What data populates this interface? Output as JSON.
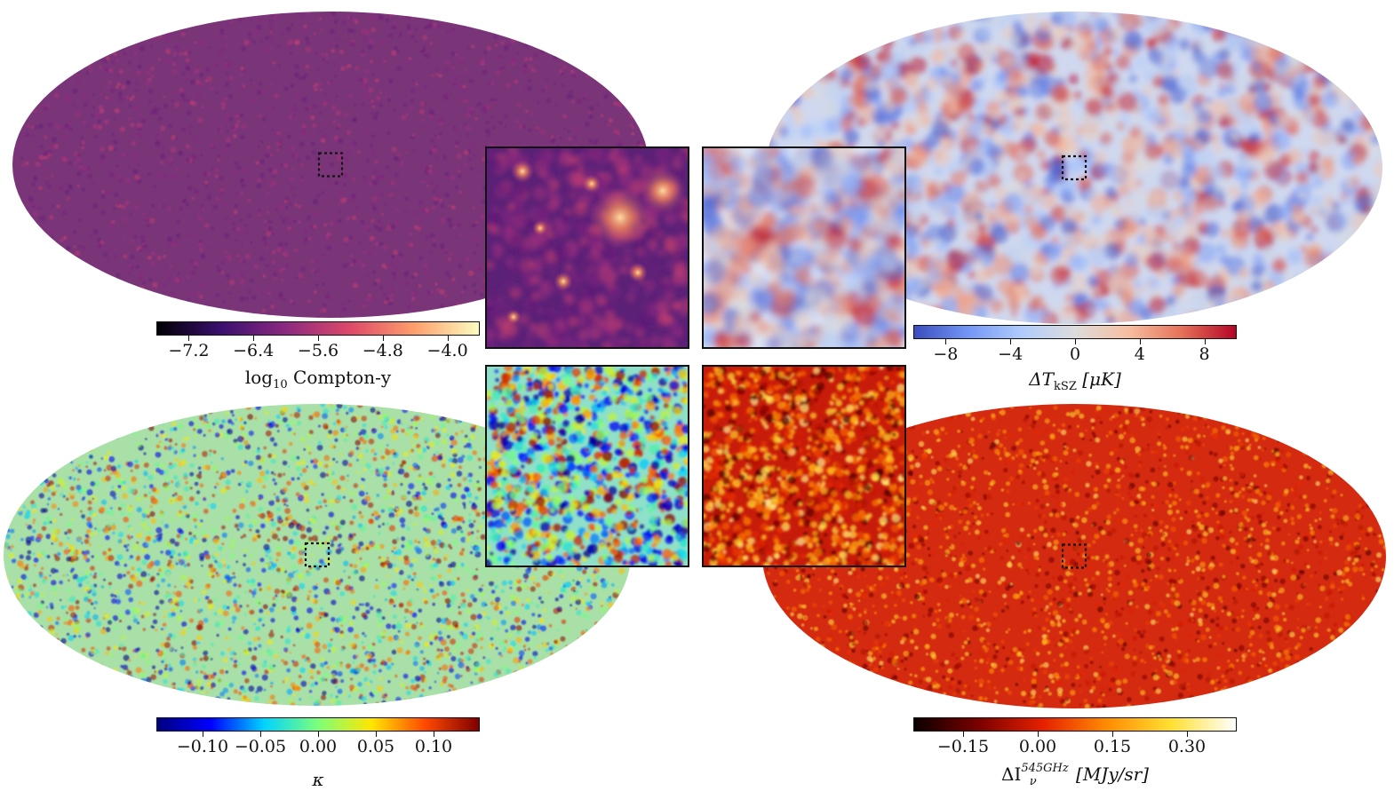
{
  "panels": [
    {
      "id": "compton-y",
      "colormap": [
        "#000004",
        "#3b0f70",
        "#8c2981",
        "#de4968",
        "#fe9f6d",
        "#fcfdbf"
      ],
      "base_color": "#7a3578",
      "inset_base": "#5b2177",
      "ticks": [
        {
          "value": -7.2,
          "label": "−7.2"
        },
        {
          "value": -6.4,
          "label": "−6.4"
        },
        {
          "value": -5.6,
          "label": "−5.6"
        },
        {
          "value": -4.8,
          "label": "−4.8"
        },
        {
          "value": -4.0,
          "label": "−4.0"
        }
      ],
      "range": [
        -7.6,
        -3.6
      ],
      "label_parts": {
        "pre": "log",
        "sub": "10",
        "post": " Compton-y"
      }
    },
    {
      "id": "ksz",
      "colormap": [
        "#3b4cc0",
        "#7396f5",
        "#b0cbfc",
        "#dddcdc",
        "#f6bea1",
        "#e57058",
        "#b40426"
      ],
      "base_color": "#cfd8ef",
      "inset_base": "#dbe2f3",
      "ticks": [
        {
          "value": -8,
          "label": "−8"
        },
        {
          "value": -4,
          "label": "−4"
        },
        {
          "value": 0,
          "label": "0"
        },
        {
          "value": 4,
          "label": "4"
        },
        {
          "value": 8,
          "label": "8"
        }
      ],
      "range": [
        -10,
        10
      ],
      "label_parts": {
        "pre": "ΔT",
        "sub": "kSZ",
        "post": " [μK]"
      }
    },
    {
      "id": "kappa",
      "colormap": [
        "#00007f",
        "#0000ff",
        "#00d4ff",
        "#7dff7a",
        "#ffe600",
        "#ff4800",
        "#7f0000"
      ],
      "base_color": "#a8e0a8",
      "inset_base": "#8fe0c8",
      "ticks": [
        {
          "value": -0.1,
          "label": "−0.10"
        },
        {
          "value": -0.05,
          "label": "−0.05"
        },
        {
          "value": 0.0,
          "label": "0.00"
        },
        {
          "value": 0.05,
          "label": "0.05"
        },
        {
          "value": 0.1,
          "label": "0.10"
        }
      ],
      "range": [
        -0.14,
        0.14
      ],
      "label_parts": {
        "pre": "κ",
        "sub": "",
        "post": ""
      }
    },
    {
      "id": "cib-545",
      "colormap": [
        "#0b0000",
        "#7a0000",
        "#e62000",
        "#ff8c00",
        "#ffe033",
        "#ffffff"
      ],
      "base_color": "#d42a10",
      "inset_base": "#c81c0a",
      "ticks": [
        {
          "value": -0.15,
          "label": "−0.15"
        },
        {
          "value": 0.0,
          "label": "0.00"
        },
        {
          "value": 0.15,
          "label": "0.15"
        },
        {
          "value": 0.3,
          "label": "0.30"
        }
      ],
      "range": [
        -0.25,
        0.4
      ],
      "label_parts": {
        "pre": "ΔI",
        "sub": "ν",
        "sup": "545GHz",
        "post": " [MJy/sr]"
      }
    }
  ]
}
